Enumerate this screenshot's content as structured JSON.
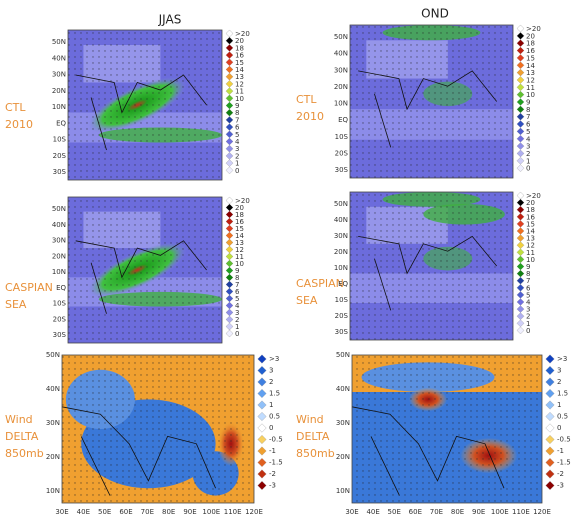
{
  "column_titles": [
    "JJAS",
    "OND"
  ],
  "row_labels": [
    [
      "CTL",
      "2010"
    ],
    [
      "CASPIAN",
      "SEA"
    ],
    [
      "Wind",
      "DELTA",
      "850mb"
    ]
  ],
  "precip_map": {
    "lat_labels": [
      "50N",
      "40N",
      "30N",
      "20N",
      "10N",
      "EQ",
      "10S",
      "20S",
      "30S"
    ],
    "colorbar": [
      ">20",
      "20",
      "18",
      "16",
      "15",
      "14",
      "13",
      "12",
      "11",
      "10",
      "9",
      "8",
      "7",
      "6",
      "5",
      "4",
      "3",
      "2",
      "1",
      "0"
    ]
  },
  "delta_map": {
    "lat_labels": [
      "50N",
      "40N",
      "30N",
      "20N",
      "10N"
    ],
    "lon_labels": [
      "30E",
      "40E",
      "50E",
      "60E",
      "70E",
      "80E",
      "90E",
      "100E",
      "110E",
      "120E"
    ],
    "colorbar": [
      ">3",
      "3",
      "2",
      "1.5",
      "1",
      "0.5",
      "0",
      "-0.5",
      "-1",
      "-1.5",
      "-2",
      "-3"
    ]
  }
}
